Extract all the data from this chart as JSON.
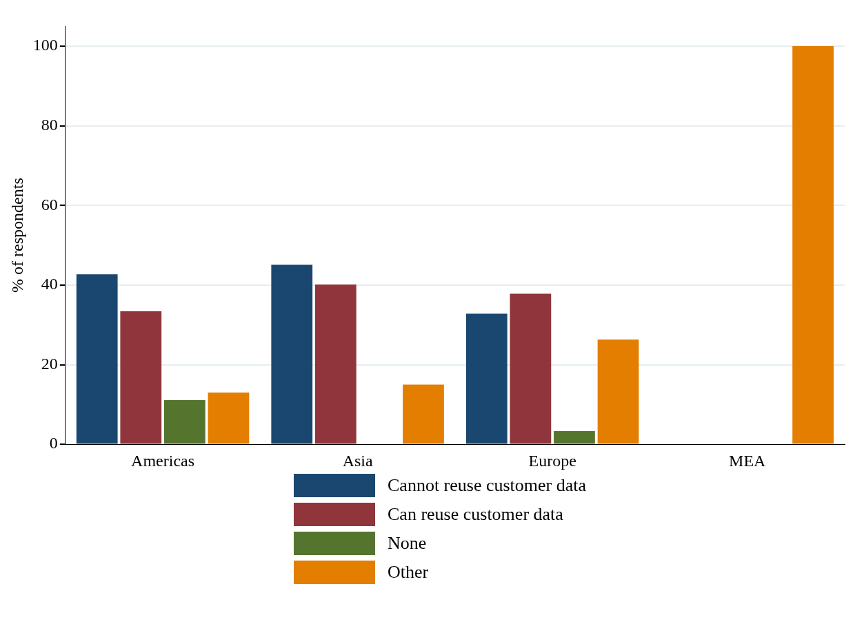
{
  "chart_data": {
    "type": "bar",
    "ylabel": "% of respondents",
    "categories": [
      "Americas",
      "Asia",
      "Europe",
      "MEA"
    ],
    "series": [
      {
        "name": "Cannot reuse customer data",
        "color": "#1a476f",
        "values": [
          42.7,
          45.1,
          32.8,
          0
        ]
      },
      {
        "name": "Can reuse customer data",
        "color": "#90353b",
        "values": [
          33.4,
          40.1,
          37.8,
          0
        ]
      },
      {
        "name": "None",
        "color": "#55752f",
        "values": [
          11.1,
          0,
          3.3,
          0
        ]
      },
      {
        "name": "Other",
        "color": "#e37e00",
        "values": [
          13.0,
          15.0,
          26.3,
          100
        ]
      }
    ],
    "ylim": [
      0,
      105
    ],
    "yticks": [
      0,
      20,
      40,
      60,
      80,
      100
    ],
    "grid": "y",
    "legend": "bottom"
  }
}
